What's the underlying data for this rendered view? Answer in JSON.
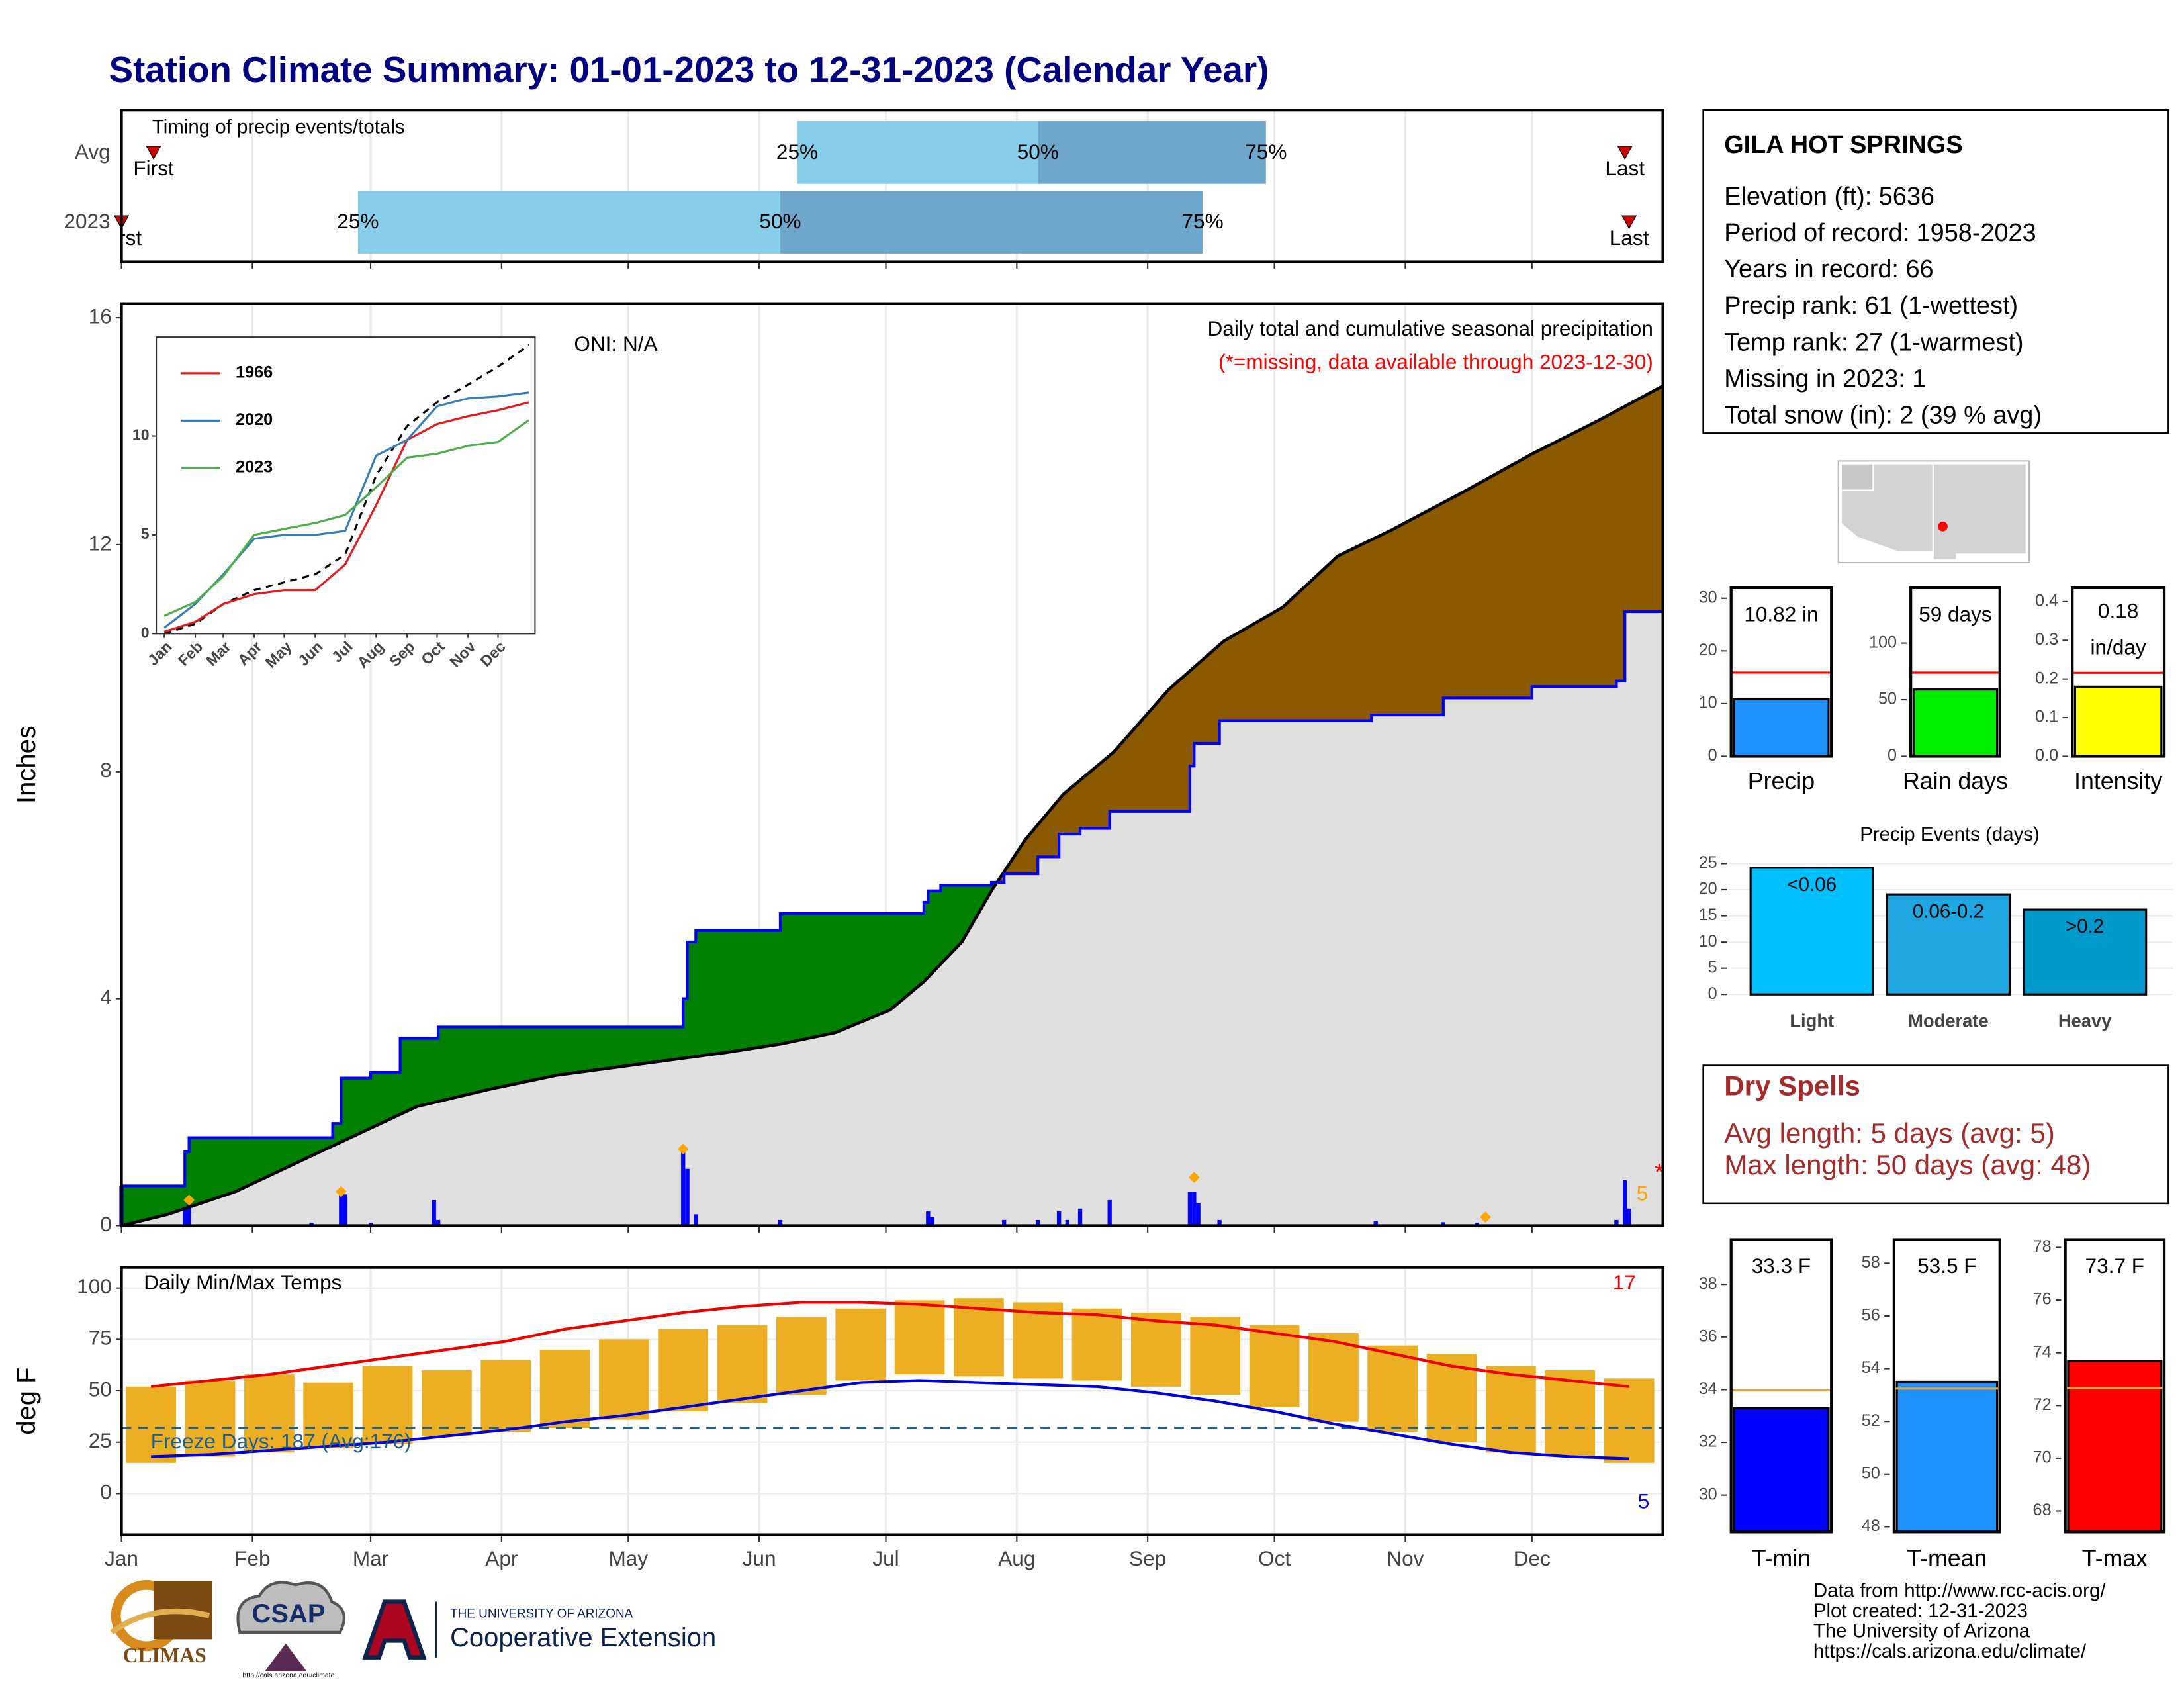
{
  "title": "Station Climate Summary: 01-01-2023 to 12-31-2023 (Calendar Year)",
  "chart_data": [
    {
      "type": "timing",
      "title": "Timing of precip events/totals",
      "marker_labels": [
        "First",
        "25%",
        "50%",
        "75%",
        "Last"
      ],
      "series": [
        {
          "name": "Avg",
          "values": [
            7.6,
            160,
            217,
            271,
            356
          ]
        },
        {
          "name": "2023",
          "values": [
            0,
            56,
            156,
            256,
            357
          ]
        }
      ],
      "colors": [
        "#87ceeb",
        "#6fa6cc"
      ],
      "marker_color": "#cc0000",
      "xlim": [
        0,
        365
      ]
    },
    {
      "type": "area",
      "ylabel": "Inches",
      "subtitle": "Daily total and cumulative seasonal precipitation",
      "note": "(*=missing, data available through 2023-12-30)",
      "oni_label": "ONI: N/A",
      "count_label": "5",
      "missing_marker": "*",
      "xlim": [
        0,
        365
      ],
      "ylim": [
        0,
        16.25
      ],
      "yticks": [
        0,
        4,
        8,
        12,
        16
      ],
      "grid": true,
      "series": [
        {
          "color": "#000000",
          "x": [
            0,
            11,
            27,
            47,
            70,
            87,
            103,
            123,
            143,
            156,
            169,
            182,
            190,
            199,
            206,
            214,
            223,
            235,
            248,
            261,
            275,
            288,
            301,
            317,
            334,
            350,
            365
          ],
          "values": [
            0,
            0.2,
            0.6,
            1.3,
            2.1,
            2.4,
            2.65,
            2.85,
            3.05,
            3.2,
            3.4,
            3.8,
            4.3,
            5.0,
            5.9,
            6.8,
            7.6,
            8.35,
            9.45,
            10.3,
            10.9,
            11.8,
            12.27,
            12.9,
            13.6,
            14.2,
            14.8
          ]
        },
        {
          "color": "#0000ff",
          "step": true,
          "x": [
            0,
            15,
            16,
            50,
            52,
            59,
            66,
            75,
            133,
            134,
            136,
            156,
            190,
            191,
            194,
            206,
            209,
            217,
            222,
            227,
            234,
            253,
            254,
            260,
            296,
            313,
            334,
            354,
            356,
            365
          ],
          "values": [
            0.7,
            1.3,
            1.55,
            1.8,
            2.6,
            2.7,
            3.3,
            3.5,
            4.0,
            5.0,
            5.2,
            5.5,
            5.7,
            5.9,
            6.0,
            6.05,
            6.2,
            6.5,
            6.9,
            7.0,
            7.3,
            8.1,
            8.5,
            8.9,
            9.0,
            9.3,
            9.5,
            9.6,
            10.82,
            10.82
          ]
        }
      ],
      "above_color": "#008000",
      "below_color": "#8b5a00",
      "base_color": "#e0e0e0",
      "daily": {
        "color": "#0000ff",
        "x": [
          0,
          15,
          16,
          45,
          52,
          53,
          59,
          74,
          75,
          133,
          134,
          136,
          156,
          191,
          192,
          209,
          217,
          222,
          224,
          227,
          234,
          253,
          254,
          255,
          260,
          297,
          313,
          321,
          354,
          356,
          357
        ],
        "values": [
          0.7,
          0.3,
          0.5,
          0.05,
          0.65,
          0.55,
          0.05,
          0.45,
          0.1,
          1.3,
          1.0,
          0.2,
          0.1,
          0.25,
          0.15,
          0.1,
          0.1,
          0.25,
          0.1,
          0.3,
          0.45,
          0.6,
          0.6,
          0.4,
          0.1,
          0.08,
          0.06,
          0.05,
          0.1,
          0.8,
          0.3
        ]
      },
      "markers": {
        "color": "#ffa500",
        "x": [
          16,
          52,
          133,
          254,
          323
        ],
        "values": [
          0.45,
          0.6,
          1.35,
          0.85,
          0.15
        ]
      }
    },
    {
      "type": "line",
      "xlim": [
        -8,
        371
      ],
      "ylim": [
        0,
        15
      ],
      "yticks": [
        0,
        5,
        10
      ],
      "xticks": [
        {
          "value": 0,
          "label": "Jan"
        },
        {
          "value": 31,
          "label": "Feb"
        },
        {
          "value": 59,
          "label": "Mar"
        },
        {
          "value": 90,
          "label": "Apr"
        },
        {
          "value": 120,
          "label": "May"
        },
        {
          "value": 151,
          "label": "Jun"
        },
        {
          "value": 181,
          "label": "Jul"
        },
        {
          "value": 212,
          "label": "Aug"
        },
        {
          "value": 243,
          "label": "Sep"
        },
        {
          "value": 273,
          "label": "Oct"
        },
        {
          "value": 304,
          "label": "Nov"
        },
        {
          "value": 334,
          "label": "Dec"
        }
      ],
      "x": [
        0,
        31,
        59,
        90,
        120,
        151,
        181,
        212,
        243,
        273,
        304,
        334,
        365
      ],
      "series": [
        {
          "color": "#000000",
          "dashed": true,
          "values": [
            0,
            0.5,
            1.5,
            2.2,
            2.6,
            3.0,
            4.0,
            8.0,
            10.5,
            11.7,
            12.6,
            13.5,
            14.6
          ]
        },
        {
          "name": "1966",
          "color": "#e41a1c",
          "values": [
            0.1,
            0.6,
            1.5,
            2.0,
            2.2,
            2.2,
            3.5,
            6.5,
            9.8,
            10.6,
            11.0,
            11.3,
            11.7
          ]
        },
        {
          "name": "2020",
          "color": "#377eb8",
          "values": [
            0.3,
            1.5,
            3.0,
            4.8,
            5.0,
            5.0,
            5.2,
            9.0,
            9.8,
            11.5,
            11.9,
            12.0,
            12.2
          ]
        },
        {
          "name": "2023",
          "color": "#4daf4a",
          "values": [
            0.9,
            1.6,
            2.9,
            5.0,
            5.3,
            5.6,
            6.0,
            7.4,
            8.9,
            9.1,
            9.5,
            9.7,
            10.8
          ]
        }
      ]
    },
    {
      "type": "range",
      "title": "Daily Min/Max Temps",
      "ylabel": "deg F",
      "record_high_count": "17",
      "record_low_count": "5",
      "freeze_label": "Freeze Days: 187 (Avg:176)",
      "xlim": [
        0,
        365
      ],
      "ylim": [
        -20,
        110
      ],
      "yticks": [
        0,
        25,
        50,
        75,
        100
      ],
      "grid": true,
      "xticks": [
        {
          "value": 0,
          "label": "Jan"
        },
        {
          "value": 31,
          "label": "Feb"
        },
        {
          "value": 59,
          "label": "Mar"
        },
        {
          "value": 90,
          "label": "Apr"
        },
        {
          "value": 120,
          "label": "May"
        },
        {
          "value": 151,
          "label": "Jun"
        },
        {
          "value": 181,
          "label": "Jul"
        },
        {
          "value": 212,
          "label": "Aug"
        },
        {
          "value": 243,
          "label": "Sep"
        },
        {
          "value": 273,
          "label": "Oct"
        },
        {
          "value": 304,
          "label": "Nov"
        },
        {
          "value": 334,
          "label": "Dec"
        }
      ],
      "x": [
        7,
        21,
        35,
        49,
        63,
        77,
        91,
        105,
        119,
        133,
        147,
        161,
        175,
        189,
        203,
        217,
        231,
        245,
        259,
        273,
        287,
        301,
        315,
        329,
        343,
        357
      ],
      "bars": {
        "color": "#ecae23",
        "high": [
          52,
          55,
          58,
          54,
          62,
          60,
          65,
          70,
          75,
          80,
          82,
          86,
          90,
          94,
          95,
          93,
          90,
          88,
          86,
          82,
          78,
          72,
          68,
          62,
          60,
          56
        ],
        "low": [
          15,
          18,
          20,
          22,
          24,
          28,
          30,
          32,
          36,
          40,
          44,
          48,
          55,
          58,
          57,
          56,
          55,
          52,
          48,
          42,
          35,
          30,
          25,
          20,
          18,
          15
        ]
      },
      "series": [
        {
          "color": "#ee0000",
          "values": [
            52,
            55,
            58,
            62,
            66,
            70,
            74,
            80,
            84,
            88,
            91,
            93,
            93,
            92,
            90,
            88,
            87,
            84,
            82,
            78,
            74,
            68,
            62,
            58,
            55,
            52
          ]
        },
        {
          "color": "#0000dd",
          "values": [
            18,
            19,
            21,
            23,
            25,
            28,
            31,
            35,
            38,
            42,
            46,
            50,
            54,
            55,
            54,
            53,
            52,
            49,
            45,
            40,
            34,
            29,
            24,
            20,
            18,
            17
          ]
        }
      ],
      "freeze_line": 32,
      "freeze_color": "#1f5f8b"
    },
    {
      "type": "bar",
      "categories": [
        "Precip"
      ],
      "values": [
        10.82
      ],
      "value_labels": [
        "10.82 in"
      ],
      "avg": 15.9,
      "avg_color": "#ff0000",
      "color": "#1e90ff",
      "ylim": [
        0,
        32
      ],
      "yticks": [
        0,
        10,
        20,
        30
      ]
    },
    {
      "type": "bar",
      "categories": [
        "Rain days"
      ],
      "values": [
        59
      ],
      "value_labels": [
        "59 days"
      ],
      "avg": 74,
      "avg_color": "#ff0000",
      "color": "#00ee00",
      "ylim": [
        0,
        149
      ],
      "yticks": [
        0,
        50,
        100
      ]
    },
    {
      "type": "bar",
      "categories": [
        "Intensity"
      ],
      "values": [
        0.18
      ],
      "value_labels": [
        "0.18 in/day"
      ],
      "avg": 0.216,
      "avg_color": "#ff0000",
      "color": "#ffff00",
      "ylim": [
        0,
        0.436
      ],
      "yticks": [
        {
          "value": 0,
          "label": "0.0"
        },
        0.1,
        0.2,
        0.3,
        0.4
      ]
    },
    {
      "type": "bar",
      "title": "Precip Events (days)",
      "categories": [
        "Light",
        "Moderate",
        "Heavy"
      ],
      "bin_labels": [
        "<0.06",
        "0.06-0.2",
        ">0.2"
      ],
      "values": [
        24.2,
        19.1,
        16.2
      ],
      "colors": [
        "#00bfff",
        "#1ea6e0",
        "#0099cc"
      ],
      "ylim": [
        0,
        26.6
      ],
      "yticks": [
        0,
        5,
        10,
        15,
        20,
        25
      ],
      "grid": true
    },
    {
      "type": "bar",
      "categories": [
        "T-min"
      ],
      "values": [
        33.3
      ],
      "value_labels": [
        "33.3 F"
      ],
      "avg": 33.97,
      "avg_color": "#e8a33d",
      "color": "#0000ff",
      "ylim": [
        28.6,
        39.7
      ],
      "yticks": [
        30,
        32,
        34,
        36,
        38
      ]
    },
    {
      "type": "bar",
      "categories": [
        "T-mean"
      ],
      "values": [
        53.5
      ],
      "value_labels": [
        "53.5 F"
      ],
      "avg": 53.24,
      "avg_color": "#e8a33d",
      "color": "#1e90ff",
      "ylim": [
        47.8,
        58.9
      ],
      "yticks": [
        48,
        50,
        52,
        54,
        56,
        58
      ]
    },
    {
      "type": "bar",
      "categories": [
        "T-max"
      ],
      "values": [
        73.7
      ],
      "value_labels": [
        "73.7 F"
      ],
      "avg": 72.65,
      "avg_color": "#e8a33d",
      "color": "#ff0000",
      "ylim": [
        67.2,
        78.3
      ],
      "yticks": [
        68,
        70,
        72,
        74,
        76,
        78
      ]
    }
  ],
  "station": {
    "name": "GILA HOT SPRINGS",
    "lines": [
      "Elevation (ft): 5636",
      "Period of record: 1958-2023",
      "Years in record: 66",
      "Precip rank: 61 (1-wettest)",
      "Temp rank: 27 (1-warmest)",
      "Missing in 2023: 1",
      "Total snow (in): 2 (39 % avg)"
    ]
  },
  "dry_spells": {
    "title": "Dry Spells",
    "lines": [
      "Avg length: 5 days (avg: 5)",
      "Max length: 50 days (avg: 48)"
    ]
  },
  "footer": {
    "credits": [
      "Data from http://www.rcc-acis.org/",
      "Plot created: 12-31-2023",
      "The University of Arizona",
      "https://cals.arizona.edu/climate/"
    ],
    "climas": "CLIMAS",
    "csap": "CSAP",
    "csap_url": "http://cals.arizona.edu/climate",
    "ua_small": "THE UNIVERSITY OF ARIZONA",
    "ua_large": "Cooperative Extension"
  }
}
